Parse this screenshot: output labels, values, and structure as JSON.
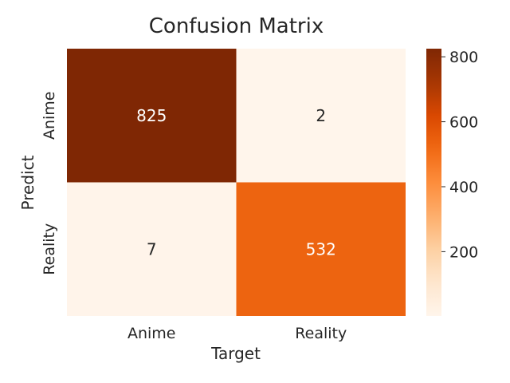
{
  "chart_data": {
    "type": "heatmap",
    "title": "Confusion Matrix",
    "xlabel": "Target",
    "ylabel": "Predict",
    "x_categories": [
      "Anime",
      "Reality"
    ],
    "y_categories": [
      "Anime",
      "Reality"
    ],
    "values": [
      [
        825,
        2
      ],
      [
        7,
        532
      ]
    ],
    "colormap": "Oranges",
    "color_range": [
      2,
      825
    ],
    "colorbar_ticks": [
      200,
      400,
      600,
      800
    ],
    "colors": {
      "low": "#fff5eb",
      "high": "#7f2704",
      "text_light": "#ffffff",
      "text_dark": "#262626"
    }
  }
}
